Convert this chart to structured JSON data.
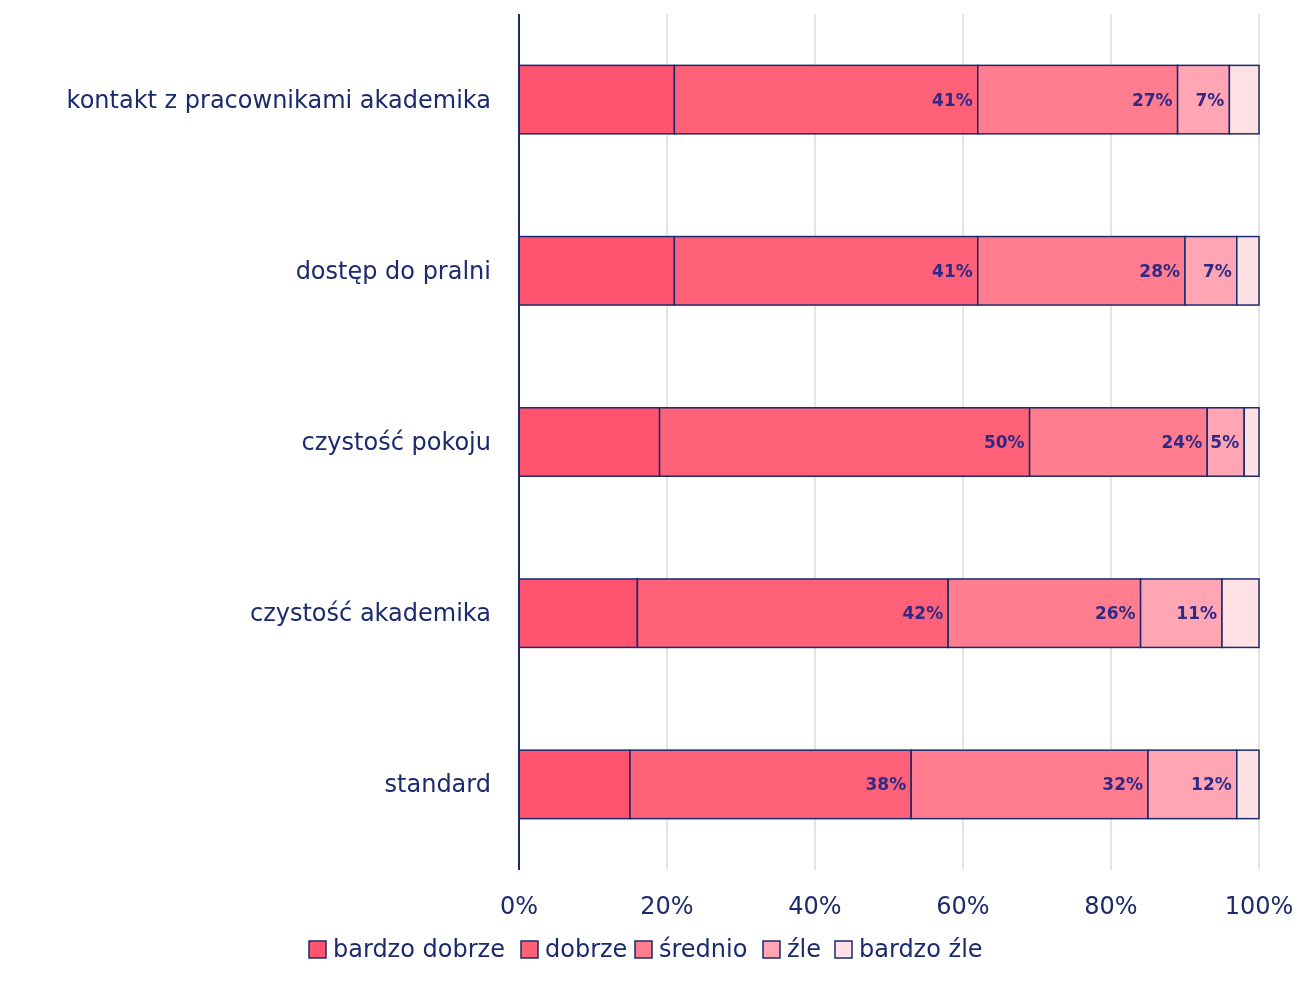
{
  "chart_data": {
    "type": "bar",
    "orientation": "horizontal",
    "stacked": true,
    "categories": [
      "kontakt z pracownikami akademika",
      "dostęp do pralni",
      "czystość pokoju",
      "czystość akademika",
      "standard"
    ],
    "series": [
      {
        "name": "bardzo dobrze",
        "color": "#ff5370",
        "values": [
          21,
          21,
          19,
          16,
          15
        ],
        "value_labels": [
          null,
          null,
          null,
          null,
          null
        ]
      },
      {
        "name": "dobrze",
        "color": "#ff6179",
        "values": [
          41,
          41,
          50,
          42,
          38
        ],
        "value_labels": [
          "41%",
          "41%",
          "50%",
          "42%",
          "38%"
        ]
      },
      {
        "name": "średnio",
        "color": "#ff7d8f",
        "values": [
          27,
          28,
          24,
          26,
          32
        ],
        "value_labels": [
          "27%",
          "28%",
          "24%",
          "26%",
          "32%"
        ]
      },
      {
        "name": "źle",
        "color": "#ffa5b3",
        "values": [
          7,
          7,
          5,
          11,
          12
        ],
        "value_labels": [
          "7%",
          "7%",
          "5%",
          "11%",
          "12%"
        ]
      },
      {
        "name": "bardzo źle",
        "color": "#ffe0e5",
        "values": [
          4,
          3,
          2,
          5,
          3
        ],
        "value_labels": [
          null,
          null,
          null,
          null,
          null
        ]
      }
    ],
    "xlim": [
      0,
      100
    ],
    "xticks": [
      {
        "value": 0,
        "label": "0%"
      },
      {
        "value": 20,
        "label": "20%"
      },
      {
        "value": 40,
        "label": "40%"
      },
      {
        "value": 60,
        "label": "60%"
      },
      {
        "value": 80,
        "label": "80%"
      },
      {
        "value": 100,
        "label": "100%"
      }
    ],
    "grid": "x",
    "legend": "bottom"
  }
}
